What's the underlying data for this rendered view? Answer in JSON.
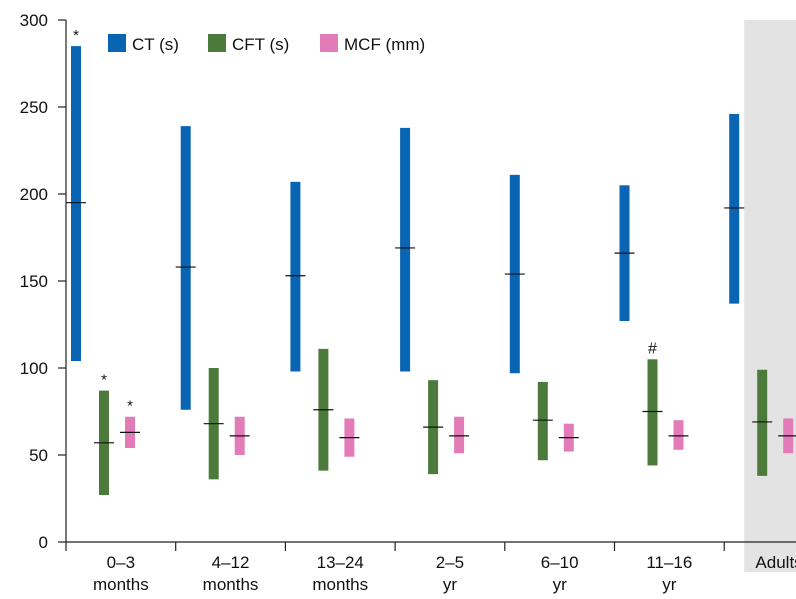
{
  "chart_data": {
    "type": "range-bar",
    "ylim": [
      0,
      300
    ],
    "yticks": [
      0,
      50,
      100,
      150,
      200,
      250,
      300
    ],
    "grid": false,
    "legend_position": "top-left",
    "series": [
      {
        "name": "CT (s)",
        "key": "ct",
        "color": "#0a64b4"
      },
      {
        "name": "CFT (s)",
        "key": "cft",
        "color": "#4c7a3a"
      },
      {
        "name": "MCF (mm)",
        "key": "mcf",
        "color": "#e27bb8"
      }
    ],
    "groups": [
      {
        "label": [
          "0–3",
          "months"
        ],
        "shaded": false,
        "ct": {
          "min": 104,
          "max": 285,
          "median": 195,
          "mark": "*"
        },
        "cft": {
          "min": 27,
          "max": 87,
          "median": 57,
          "mark": "*"
        },
        "mcf": {
          "min": 54,
          "max": 72,
          "median": 63,
          "mark": "*"
        }
      },
      {
        "label": [
          "4–12",
          "months"
        ],
        "shaded": false,
        "ct": {
          "min": 76,
          "max": 239,
          "median": 158,
          "mark": ""
        },
        "cft": {
          "min": 36,
          "max": 100,
          "median": 68,
          "mark": ""
        },
        "mcf": {
          "min": 50,
          "max": 72,
          "median": 61,
          "mark": ""
        }
      },
      {
        "label": [
          "13–24",
          "months"
        ],
        "shaded": false,
        "ct": {
          "min": 98,
          "max": 207,
          "median": 153,
          "mark": ""
        },
        "cft": {
          "min": 41,
          "max": 111,
          "median": 76,
          "mark": ""
        },
        "mcf": {
          "min": 49,
          "max": 71,
          "median": 60,
          "mark": ""
        }
      },
      {
        "label": [
          "2–5",
          "yr"
        ],
        "shaded": false,
        "ct": {
          "min": 98,
          "max": 238,
          "median": 169,
          "mark": ""
        },
        "cft": {
          "min": 39,
          "max": 93,
          "median": 66,
          "mark": ""
        },
        "mcf": {
          "min": 51,
          "max": 72,
          "median": 61,
          "mark": ""
        }
      },
      {
        "label": [
          "6–10",
          "yr"
        ],
        "shaded": false,
        "ct": {
          "min": 97,
          "max": 211,
          "median": 154,
          "mark": ""
        },
        "cft": {
          "min": 47,
          "max": 92,
          "median": 70,
          "mark": ""
        },
        "mcf": {
          "min": 52,
          "max": 68,
          "median": 60,
          "mark": ""
        }
      },
      {
        "label": [
          "11–16",
          "yr"
        ],
        "shaded": false,
        "ct": {
          "min": 127,
          "max": 205,
          "median": 166,
          "mark": ""
        },
        "cft": {
          "min": 44,
          "max": 105,
          "median": 75,
          "mark": "#"
        },
        "mcf": {
          "min": 53,
          "max": 70,
          "median": 61,
          "mark": ""
        }
      },
      {
        "label": [
          "Adults"
        ],
        "shaded": true,
        "ct": {
          "min": 137,
          "max": 246,
          "median": 192,
          "mark": ""
        },
        "cft": {
          "min": 38,
          "max": 99,
          "median": 69,
          "mark": ""
        },
        "mcf": {
          "min": 51,
          "max": 71,
          "median": 61,
          "mark": ""
        }
      }
    ]
  }
}
